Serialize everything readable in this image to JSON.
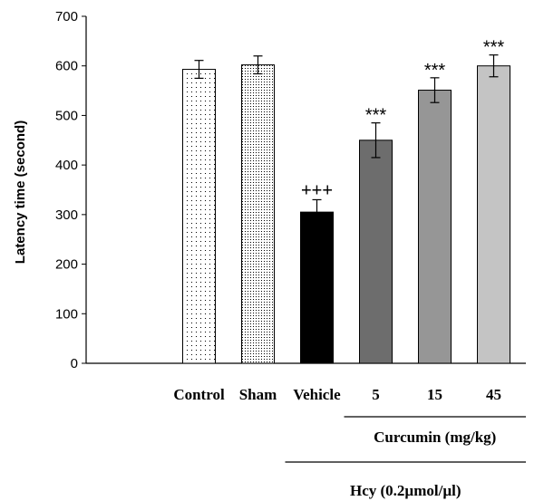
{
  "chart_data": {
    "type": "bar",
    "title": "",
    "xlabel": "",
    "ylabel": "Latency time (second)",
    "ylim": [
      0,
      700
    ],
    "yticks": [
      0,
      100,
      200,
      300,
      400,
      500,
      600,
      700
    ],
    "grid": false,
    "categories": [
      "Control",
      "Sham",
      "Vehicle",
      "5",
      "15",
      "45"
    ],
    "values": [
      593,
      602,
      305,
      450,
      551,
      600
    ],
    "errors": [
      18,
      18,
      25,
      35,
      25,
      22
    ],
    "annotations": [
      "",
      "",
      "+++",
      "***",
      "***",
      "***"
    ],
    "bar_styles": [
      {
        "fill": "#ffffff",
        "pattern": "sparse-dots"
      },
      {
        "fill": "#ffffff",
        "pattern": "dense-dots"
      },
      {
        "fill": "#000000",
        "pattern": "none"
      },
      {
        "fill": "#6d6d6d",
        "pattern": "none"
      },
      {
        "fill": "#969696",
        "pattern": "none"
      },
      {
        "fill": "#c4c4c4",
        "pattern": "none"
      }
    ],
    "group_labels": [
      {
        "text": "Curcumin (mg/kg)",
        "first": 3,
        "last": 5
      },
      {
        "text": "Hcy (0.2µmol/µl)",
        "first": 2,
        "last": 5
      }
    ]
  }
}
